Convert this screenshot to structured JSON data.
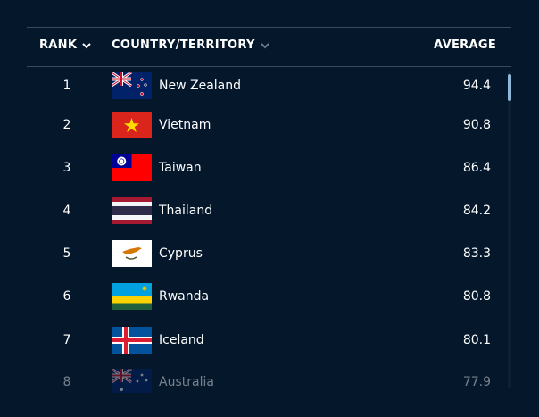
{
  "header": {
    "columns": [
      "RANK",
      "COUNTRY/TERRITORY",
      "AVERAGE"
    ]
  },
  "table": {
    "rows": [
      [
        1,
        "New Zealand",
        94.4
      ],
      [
        2,
        "Vietnam",
        90.8
      ],
      [
        3,
        "Taiwan",
        86.4
      ],
      [
        4,
        "Thailand",
        84.2
      ],
      [
        5,
        "Cyprus",
        83.3
      ],
      [
        6,
        "Rwanda",
        80.8
      ],
      [
        7,
        "Iceland",
        80.1
      ],
      [
        8,
        "Australia",
        77.9
      ]
    ]
  }
}
